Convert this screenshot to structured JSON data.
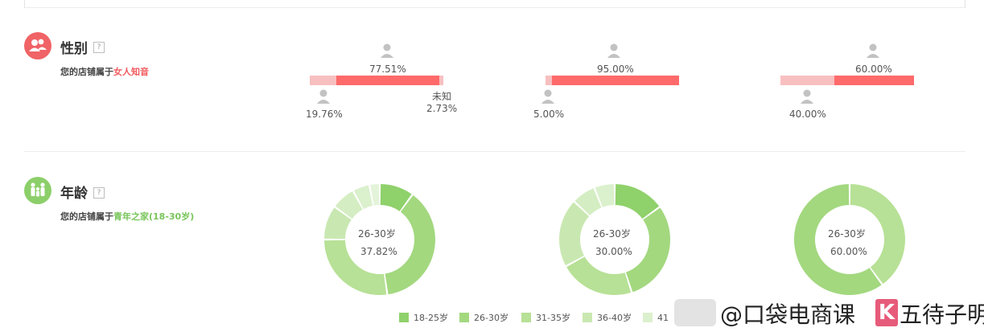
{
  "colors": {
    "male_bar": "#f8bfc0",
    "female_bar": "#ff6a6a",
    "gender_icon_bg": "#f06366",
    "age_icon_bg": "#8ccf6a",
    "accent_gender_text": "#f05a5e",
    "accent_age_text": "#79c55b",
    "age_palette": [
      "#8fd16b",
      "#a3d87f",
      "#b7e196",
      "#c9e8b1",
      "#dbf0cd"
    ]
  },
  "gender": {
    "title": "性别",
    "help": "?",
    "subtitle_prefix": "您的店铺属于",
    "subtitle_highlight": "女人知音",
    "charts": [
      {
        "female_pct": "77.51%",
        "male_pct": "19.76%",
        "unknown_label": "未知",
        "unknown_pct": "2.73%",
        "male": 0.1976,
        "female": 0.7751,
        "unknown": 0.0273
      },
      {
        "female_pct": "95.00%",
        "male_pct": "5.00%",
        "male": 0.05,
        "female": 0.95,
        "unknown": 0
      },
      {
        "female_pct": "60.00%",
        "male_pct": "40.00%",
        "male": 0.4,
        "female": 0.6,
        "unknown": 0
      }
    ]
  },
  "age": {
    "title": "年龄",
    "help": "?",
    "subtitle_prefix": "您的店铺属于",
    "subtitle_highlight": "青年之家(18-30岁)",
    "charts": [
      {
        "center_label": "26-30岁",
        "center_pct": "37.82%",
        "slices": [
          0.1,
          0.3782,
          0.2718,
          0.1,
          0.07,
          0.05,
          0.03
        ]
      },
      {
        "center_label": "26-30岁",
        "center_pct": "30.00%",
        "slices": [
          0.15,
          0.3,
          0.22,
          0.2,
          0.07,
          0.06
        ]
      },
      {
        "center_label": "26-30岁",
        "center_pct": "60.00%",
        "slices": [
          0.4,
          0.6
        ]
      }
    ],
    "slice_colors": [
      [
        "#8fd16b",
        "#a3d87f",
        "#b7e196",
        "#c9e8b1",
        "#d4edc2",
        "#dbf0cd",
        "#e4f4da"
      ],
      [
        "#8fd16b",
        "#a3d87f",
        "#b7e196",
        "#c9e8b1",
        "#d4edc2",
        "#dbf0cd"
      ],
      [
        "#b7e196",
        "#a3d87f"
      ]
    ],
    "legend": [
      {
        "label": "18-25岁",
        "color": "#8fd16b"
      },
      {
        "label": "26-30岁",
        "color": "#a3d87f"
      },
      {
        "label": "31-35岁",
        "color": "#b7e196"
      },
      {
        "label": "36-40岁",
        "color": "#c9e8b1"
      },
      {
        "label": "41",
        "color": "#dbf0cd"
      }
    ]
  },
  "watermark": {
    "text": "@口袋电商课",
    "brand": "五待子明"
  }
}
